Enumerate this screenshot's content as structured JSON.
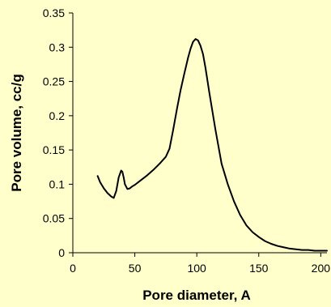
{
  "chart_data": {
    "type": "line",
    "title": "",
    "xlabel": "Pore diameter, A",
    "ylabel": "Pore volume, cc/g",
    "xlim": [
      0,
      205
    ],
    "ylim": [
      0,
      0.35
    ],
    "grid": false,
    "legend": "none",
    "xticks": [
      {
        "value": 0,
        "label": "0"
      },
      {
        "value": 50,
        "label": "50"
      },
      {
        "value": 100,
        "label": "100"
      },
      {
        "value": 150,
        "label": "150"
      },
      {
        "value": 200,
        "label": "200"
      }
    ],
    "yticks": [
      {
        "value": 0,
        "label": "0"
      },
      {
        "value": 0.05,
        "label": "0.05"
      },
      {
        "value": 0.1,
        "label": "0.1"
      },
      {
        "value": 0.15,
        "label": "0.15"
      },
      {
        "value": 0.2,
        "label": "0.2"
      },
      {
        "value": 0.25,
        "label": "0.25"
      },
      {
        "value": 0.3,
        "label": "0.3"
      },
      {
        "value": 0.35,
        "label": "0.35"
      }
    ],
    "colors": {
      "background": "#FFFFCC",
      "line": "#000000",
      "axis": "#000000"
    },
    "series": [
      {
        "x": [
          20,
          22,
          25,
          28,
          31,
          33,
          35,
          37,
          39,
          40,
          41,
          42,
          44,
          46,
          48,
          50,
          55,
          60,
          65,
          70,
          75,
          78,
          81,
          84,
          87,
          90,
          93,
          95,
          97,
          99,
          101,
          103,
          105,
          107,
          110,
          115,
          120,
          125,
          130,
          135,
          140,
          145,
          150,
          155,
          160,
          165,
          170,
          175,
          180,
          185,
          190,
          195,
          200,
          205
        ],
        "y": [
          0.112,
          0.103,
          0.094,
          0.087,
          0.082,
          0.08,
          0.09,
          0.11,
          0.12,
          0.118,
          0.11,
          0.1,
          0.093,
          0.094,
          0.097,
          0.099,
          0.106,
          0.113,
          0.121,
          0.13,
          0.14,
          0.152,
          0.18,
          0.21,
          0.238,
          0.262,
          0.285,
          0.298,
          0.308,
          0.312,
          0.31,
          0.302,
          0.29,
          0.27,
          0.235,
          0.18,
          0.13,
          0.1,
          0.075,
          0.055,
          0.04,
          0.03,
          0.023,
          0.017,
          0.013,
          0.01,
          0.008,
          0.006,
          0.005,
          0.004,
          0.004,
          0.003,
          0.003,
          0.003
        ]
      }
    ]
  }
}
